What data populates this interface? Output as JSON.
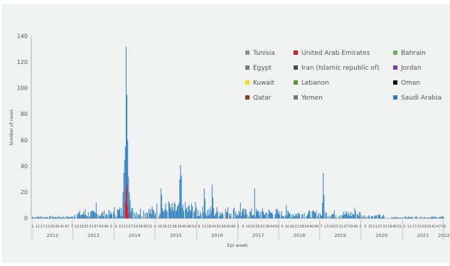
{
  "chart_data": {
    "type": "bar",
    "title": "",
    "ylabel": "Number of cases",
    "xlabel": "Epi week",
    "ylim": [
      0,
      140
    ],
    "yticks": [
      0,
      20,
      40,
      60,
      80,
      100,
      120,
      140
    ],
    "grid": false,
    "legend_position": "top-right",
    "week_tick_labels": [
      "1",
      "11",
      "17",
      "23",
      "29",
      "35",
      "41",
      "47",
      "7",
      "13",
      "19",
      "25",
      "31",
      "37",
      "43",
      "49",
      "3",
      "9",
      "15",
      "21",
      "27",
      "33",
      "39",
      "45",
      "51",
      "4",
      "10",
      "16",
      "22",
      "28",
      "34",
      "40",
      "46",
      "52",
      "6",
      "12",
      "18",
      "24",
      "30",
      "36",
      "42",
      "48",
      "2",
      "8",
      "14",
      "20",
      "26",
      "32",
      "38",
      "44",
      "50",
      "4",
      "10",
      "16",
      "22",
      "28",
      "34",
      "40",
      "46",
      "7",
      "13",
      "19",
      "25",
      "31",
      "37",
      "43",
      "49",
      "3",
      "9",
      "15",
      "21",
      "27",
      "33",
      "39",
      "45",
      "51",
      "5",
      "11",
      "17",
      "23",
      "29",
      "35",
      "41",
      "47",
      "53"
    ],
    "years": [
      "2012",
      "2013",
      "2014",
      "2015",
      "2016",
      "2017",
      "2018",
      "2019",
      "2020",
      "2021",
      "2022"
    ],
    "series": [
      {
        "name": "Tunisia",
        "color": "#8c8c8c",
        "values": []
      },
      {
        "name": "United Arab Emirates",
        "color": "#e31a1c",
        "values": [
          {
            "year": "2014",
            "week": 15,
            "value": 12
          },
          {
            "year": "2014",
            "week": 16,
            "value": 22
          },
          {
            "year": "2014",
            "week": 17,
            "value": 27
          },
          {
            "year": "2014",
            "week": 18,
            "value": 10
          },
          {
            "year": "2014",
            "week": 19,
            "value": 4
          }
        ]
      },
      {
        "name": "Bahrain",
        "color": "#6ab04c",
        "values": []
      },
      {
        "name": "Egypt",
        "color": "#7a7a7a",
        "values": []
      },
      {
        "name": "Iran (Islamic republic of)",
        "color": "#4a4a4a",
        "values": []
      },
      {
        "name": "Jordan",
        "color": "#7b3fa0",
        "values": []
      },
      {
        "name": "Kuwait",
        "color": "#f2e205",
        "values": []
      },
      {
        "name": "Lebanon",
        "color": "#4d9a2a",
        "values": []
      },
      {
        "name": "Oman",
        "color": "#111111",
        "values": []
      },
      {
        "name": "Qatar",
        "color": "#8b3a1a",
        "values": []
      },
      {
        "name": "Yemen",
        "color": "#777777",
        "values": []
      },
      {
        "name": "Saudi Arabia",
        "color": "#2e7fc1",
        "values": [
          {
            "year": "2013",
            "week": 16,
            "value": 7
          },
          {
            "year": "2013",
            "week": 30,
            "value": 12
          },
          {
            "year": "2014",
            "week": 12,
            "value": 20
          },
          {
            "year": "2014",
            "week": 15,
            "value": 55
          },
          {
            "year": "2014",
            "week": 16,
            "value": 132
          },
          {
            "year": "2014",
            "week": 17,
            "value": 95
          },
          {
            "year": "2014",
            "week": 18,
            "value": 60
          },
          {
            "year": "2014",
            "week": 19,
            "value": 32
          },
          {
            "year": "2014",
            "week": 20,
            "value": 20
          },
          {
            "year": "2015",
            "week": 8,
            "value": 23
          },
          {
            "year": "2015",
            "week": 18,
            "value": 13
          },
          {
            "year": "2015",
            "week": 33,
            "value": 41
          },
          {
            "year": "2016",
            "week": 10,
            "value": 23
          },
          {
            "year": "2016",
            "week": 20,
            "value": 26
          },
          {
            "year": "2017",
            "week": 4,
            "value": 12
          },
          {
            "year": "2017",
            "week": 22,
            "value": 23
          },
          {
            "year": "2018",
            "week": 10,
            "value": 10
          },
          {
            "year": "2019",
            "week": 5,
            "value": 35
          },
          {
            "year": "2019",
            "week": 45,
            "value": 8
          }
        ]
      }
    ]
  }
}
